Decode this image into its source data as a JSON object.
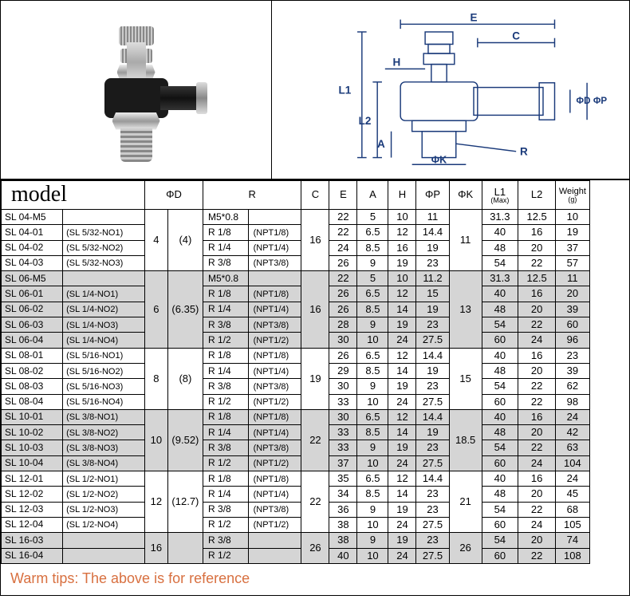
{
  "header": {
    "model_label": "model",
    "columns": [
      "ΦD",
      "R",
      "C",
      "E",
      "A",
      "H",
      "ΦP",
      "ΦK",
      "L1",
      "L2",
      "Weight"
    ],
    "l1_sub": "(Max)",
    "weight_sub": "(g)"
  },
  "diagram_labels": {
    "E": "E",
    "C": "C",
    "H": "H",
    "L1": "L1",
    "L2": "L2",
    "A": "A",
    "phiK": "ΦK",
    "R": "R",
    "phiD": "ΦD",
    "phiP": "ΦP"
  },
  "groups": [
    {
      "shaded": false,
      "phiD": "4",
      "phiD_alt": "(4)",
      "C": "16",
      "phiK": "11",
      "rows": [
        {
          "model": "SL 04-M5",
          "alt": "",
          "r": "M5*0.8",
          "npt": "",
          "E": "22",
          "A": "5",
          "H": "10",
          "phiP": "11",
          "L1": "31.3",
          "L2": "12.5",
          "W": "10"
        },
        {
          "model": "SL 04-01",
          "alt": "(SL 5/32-NO1)",
          "r": "R 1/8",
          "npt": "(NPT1/8)",
          "E": "22",
          "A": "6.5",
          "H": "12",
          "phiP": "14.4",
          "L1": "40",
          "L2": "16",
          "W": "19"
        },
        {
          "model": "SL 04-02",
          "alt": "(SL 5/32-NO2)",
          "r": "R 1/4",
          "npt": "(NPT1/4)",
          "E": "24",
          "A": "8.5",
          "H": "16",
          "phiP": "19",
          "L1": "48",
          "L2": "20",
          "W": "37"
        },
        {
          "model": "SL 04-03",
          "alt": "(SL 5/32-NO3)",
          "r": "R 3/8",
          "npt": "(NPT3/8)",
          "E": "26",
          "A": "9",
          "H": "19",
          "phiP": "23",
          "L1": "54",
          "L2": "22",
          "W": "57"
        }
      ]
    },
    {
      "shaded": true,
      "phiD": "6",
      "phiD_alt": "(6.35)",
      "C": "16",
      "phiK": "13",
      "rows": [
        {
          "model": "SL 06-M5",
          "alt": "",
          "r": "M5*0.8",
          "npt": "",
          "E": "22",
          "A": "5",
          "H": "10",
          "phiP": "11.2",
          "L1": "31.3",
          "L2": "12.5",
          "W": "11"
        },
        {
          "model": "SL 06-01",
          "alt": "(SL 1/4-NO1)",
          "r": "R 1/8",
          "npt": "(NPT1/8)",
          "E": "26",
          "A": "6.5",
          "H": "12",
          "phiP": "15",
          "L1": "40",
          "L2": "16",
          "W": "20"
        },
        {
          "model": "SL 06-02",
          "alt": "(SL 1/4-NO2)",
          "r": "R 1/4",
          "npt": "(NPT1/4)",
          "E": "26",
          "A": "8.5",
          "H": "14",
          "phiP": "19",
          "L1": "48",
          "L2": "20",
          "W": "39"
        },
        {
          "model": "SL 06-03",
          "alt": "(SL 1/4-NO3)",
          "r": "R 3/8",
          "npt": "(NPT3/8)",
          "E": "28",
          "A": "9",
          "H": "19",
          "phiP": "23",
          "L1": "54",
          "L2": "22",
          "W": "60"
        },
        {
          "model": "SL 06-04",
          "alt": "(SL 1/4-NO4)",
          "r": "R 1/2",
          "npt": "(NPT1/2)",
          "E": "30",
          "A": "10",
          "H": "24",
          "phiP": "27.5",
          "L1": "60",
          "L2": "24",
          "W": "96"
        }
      ]
    },
    {
      "shaded": false,
      "phiD": "8",
      "phiD_alt": "(8)",
      "C": "19",
      "phiK": "15",
      "rows": [
        {
          "model": "SL 08-01",
          "alt": "(SL 5/16-NO1)",
          "r": "R 1/8",
          "npt": "(NPT1/8)",
          "E": "26",
          "A": "6.5",
          "H": "12",
          "phiP": "14.4",
          "L1": "40",
          "L2": "16",
          "W": "23"
        },
        {
          "model": "SL 08-02",
          "alt": "(SL 5/16-NO2)",
          "r": "R 1/4",
          "npt": "(NPT1/4)",
          "E": "29",
          "A": "8.5",
          "H": "14",
          "phiP": "19",
          "L1": "48",
          "L2": "20",
          "W": "39"
        },
        {
          "model": "SL 08-03",
          "alt": "(SL 5/16-NO3)",
          "r": "R 3/8",
          "npt": "(NPT3/8)",
          "E": "30",
          "A": "9",
          "H": "19",
          "phiP": "23",
          "L1": "54",
          "L2": "22",
          "W": "62"
        },
        {
          "model": "SL 08-04",
          "alt": "(SL 5/16-NO4)",
          "r": "R 1/2",
          "npt": "(NPT1/2)",
          "E": "33",
          "A": "10",
          "H": "24",
          "phiP": "27.5",
          "L1": "60",
          "L2": "22",
          "W": "98"
        }
      ]
    },
    {
      "shaded": true,
      "phiD": "10",
      "phiD_alt": "(9.52)",
      "C": "22",
      "phiK": "18.5",
      "rows": [
        {
          "model": "SL 10-01",
          "alt": "(SL 3/8-NO1)",
          "r": "R 1/8",
          "npt": "(NPT1/8)",
          "E": "30",
          "A": "6.5",
          "H": "12",
          "phiP": "14.4",
          "L1": "40",
          "L2": "16",
          "W": "24"
        },
        {
          "model": "SL 10-02",
          "alt": "(SL 3/8-NO2)",
          "r": "R 1/4",
          "npt": "(NPT1/4)",
          "E": "33",
          "A": "8.5",
          "H": "14",
          "phiP": "19",
          "L1": "48",
          "L2": "20",
          "W": "42"
        },
        {
          "model": "SL 10-03",
          "alt": "(SL 3/8-NO3)",
          "r": "R 3/8",
          "npt": "(NPT3/8)",
          "E": "33",
          "A": "9",
          "H": "19",
          "phiP": "23",
          "L1": "54",
          "L2": "22",
          "W": "63"
        },
        {
          "model": "SL 10-04",
          "alt": "(SL 3/8-NO4)",
          "r": "R 1/2",
          "npt": "(NPT1/2)",
          "E": "37",
          "A": "10",
          "H": "24",
          "phiP": "27.5",
          "L1": "60",
          "L2": "24",
          "W": "104"
        }
      ]
    },
    {
      "shaded": false,
      "phiD": "12",
      "phiD_alt": "(12.7)",
      "C": "22",
      "phiK": "21",
      "rows": [
        {
          "model": "SL 12-01",
          "alt": "(SL 1/2-NO1)",
          "r": "R 1/8",
          "npt": "(NPT1/8)",
          "E": "35",
          "A": "6.5",
          "H": "12",
          "phiP": "14.4",
          "L1": "40",
          "L2": "16",
          "W": "24"
        },
        {
          "model": "SL 12-02",
          "alt": "(SL 1/2-NO2)",
          "r": "R 1/4",
          "npt": "(NPT1/4)",
          "E": "34",
          "A": "8.5",
          "H": "14",
          "phiP": "23",
          "L1": "48",
          "L2": "20",
          "W": "45"
        },
        {
          "model": "SL 12-03",
          "alt": "(SL 1/2-NO3)",
          "r": "R 3/8",
          "npt": "(NPT3/8)",
          "E": "36",
          "A": "9",
          "H": "19",
          "phiP": "23",
          "L1": "54",
          "L2": "22",
          "W": "68"
        },
        {
          "model": "SL 12-04",
          "alt": "(SL 1/2-NO4)",
          "r": "R 1/2",
          "npt": "(NPT1/2)",
          "E": "38",
          "A": "10",
          "H": "24",
          "phiP": "27.5",
          "L1": "60",
          "L2": "24",
          "W": "105"
        }
      ]
    },
    {
      "shaded": true,
      "phiD": "16",
      "phiD_alt": "",
      "C": "26",
      "phiK": "26",
      "rows": [
        {
          "model": "SL 16-03",
          "alt": "",
          "r": "R 3/8",
          "npt": "",
          "E": "38",
          "A": "9",
          "H": "19",
          "phiP": "23",
          "L1": "54",
          "L2": "20",
          "W": "74"
        },
        {
          "model": "SL 16-04",
          "alt": "",
          "r": "R 1/2",
          "npt": "",
          "E": "40",
          "A": "10",
          "H": "24",
          "phiP": "27.5",
          "L1": "60",
          "L2": "22",
          "W": "108"
        }
      ]
    }
  ],
  "footer": {
    "warm_tips": "Warm tips: The above is for reference"
  },
  "style": {
    "shaded_bg": "#d5d5d5",
    "border_color": "#000000",
    "tips_color": "#d87040"
  }
}
